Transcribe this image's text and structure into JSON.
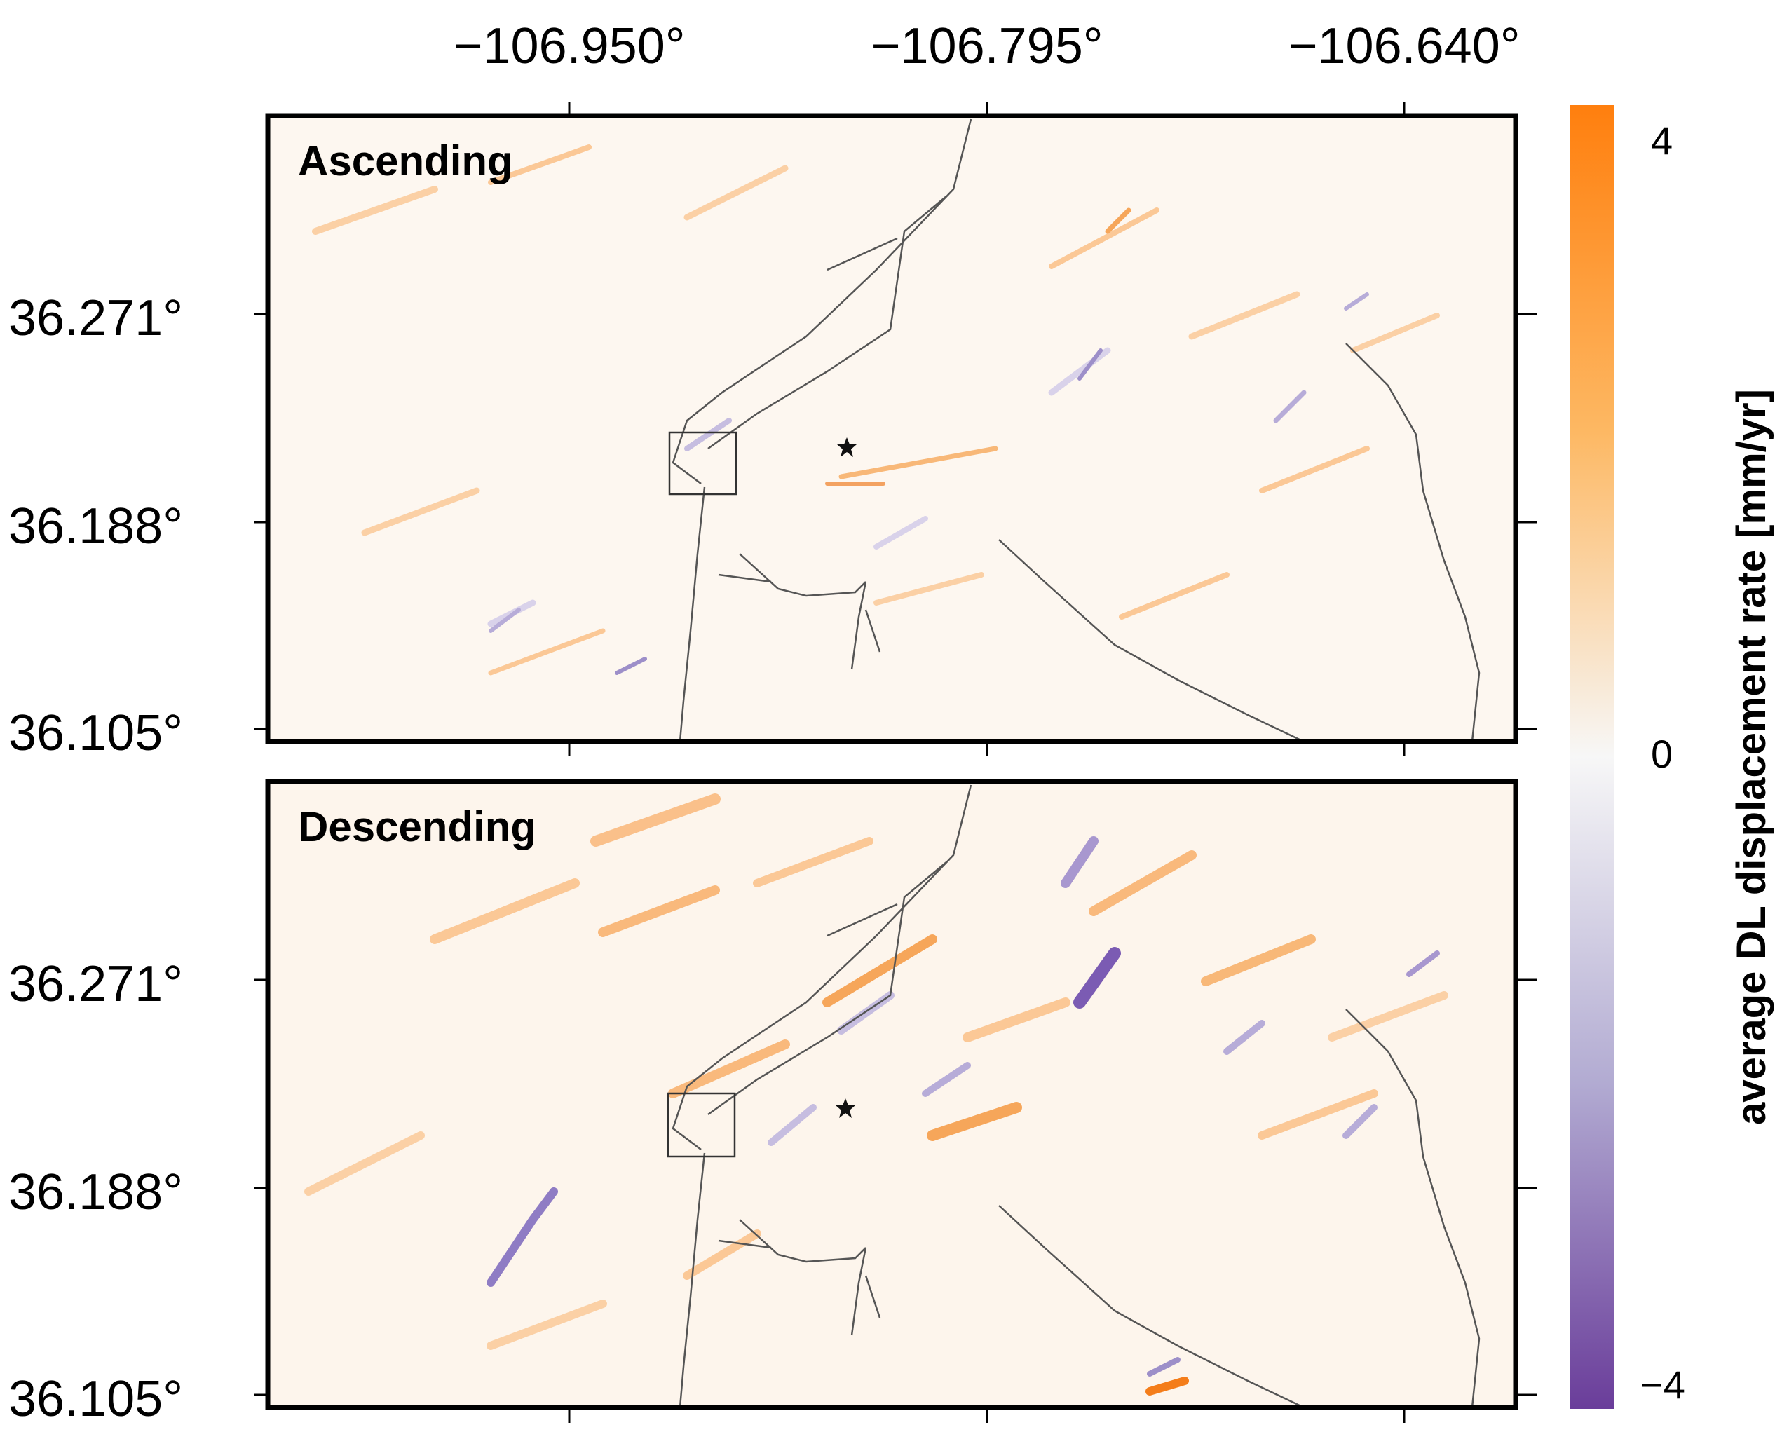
{
  "map": {
    "panels": [
      {
        "title": "Ascending"
      },
      {
        "title": "Descending"
      }
    ],
    "lon_ticks": [
      "−106.950°",
      "−106.795°",
      "−106.640°"
    ],
    "lat_ticks": [
      "36.271°",
      "36.188°",
      "36.105°"
    ],
    "colorbar": {
      "title": "average DL displacement rate [mm/yr]",
      "ticks": [
        "4",
        "0",
        "−4"
      ],
      "range": [
        -4,
        4
      ],
      "colors": {
        "positive": "#ff7f0e",
        "zero": "#f7f7f7",
        "negative": "#6a3d9a"
      }
    },
    "markers": {
      "epicenter": "star-icon",
      "inset_box": "square-outline"
    },
    "faults_color": "#555555",
    "frame_color": "#000000"
  }
}
